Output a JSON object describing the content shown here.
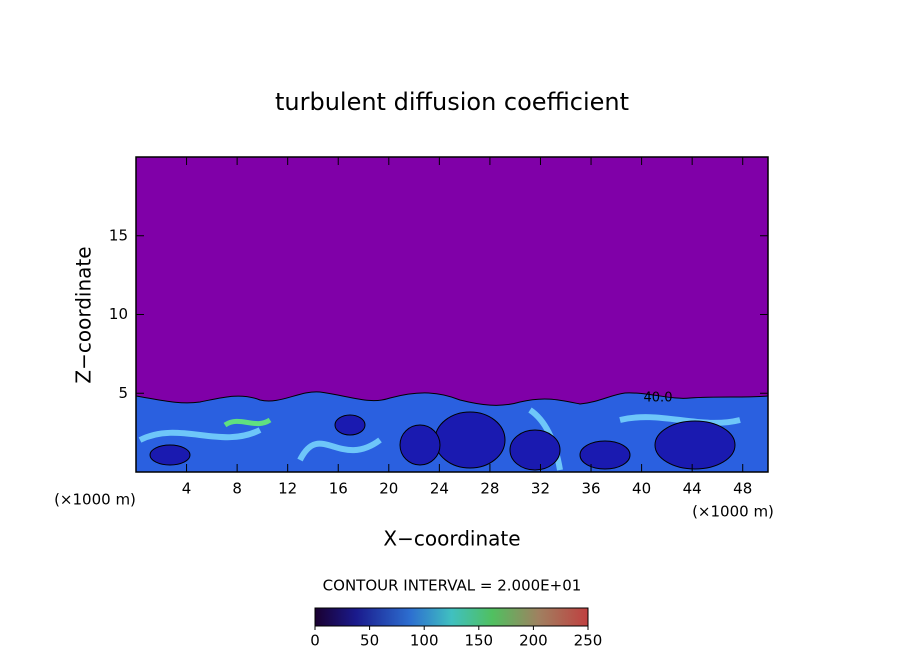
{
  "chart_data": {
    "type": "contour",
    "title": "turbulent diffusion coefficient",
    "xlabel": "X−coordinate",
    "ylabel": "Z−coordinate",
    "x_unit_label": "(×1000 m)",
    "y_unit_label": "(×1000 m)",
    "xlim": [
      0,
      50
    ],
    "xticks": [
      4,
      8,
      12,
      16,
      20,
      24,
      28,
      32,
      36,
      40,
      44,
      48
    ],
    "ylim": [
      0,
      20
    ],
    "yticks": [
      5,
      10,
      15
    ],
    "contour_label": "40.0",
    "annotation": "CONTOUR INTERVAL = 2.000E+01",
    "colorbar": {
      "lim": [
        0,
        250
      ],
      "ticks": [
        0,
        50,
        100,
        150,
        200,
        250
      ]
    }
  }
}
